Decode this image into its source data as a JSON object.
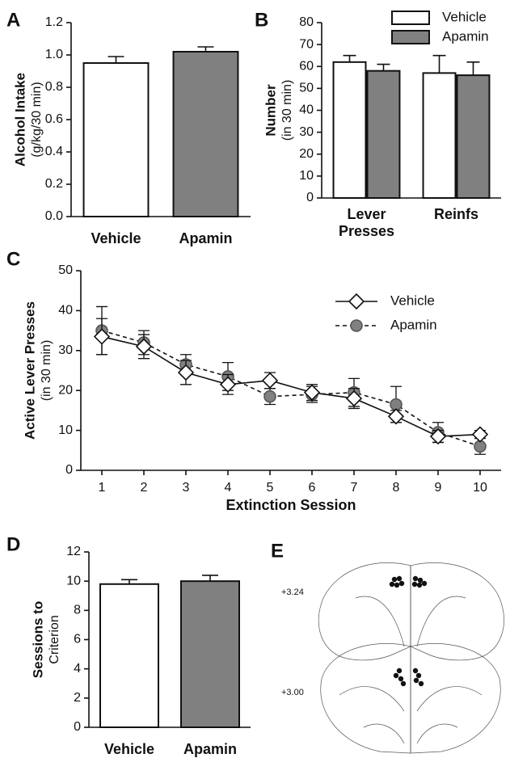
{
  "chart_data": [
    {
      "panel": "A",
      "type": "bar",
      "ylabel": [
        "Alcohol Intake",
        "(g/kg/30 min)"
      ],
      "categories": [
        "Vehicle",
        "Apamin"
      ],
      "values": [
        0.95,
        1.02
      ],
      "errors": [
        0.04,
        0.03
      ],
      "colors": [
        "#ffffff",
        "#808080"
      ],
      "ylim": [
        0,
        1.2
      ],
      "yticks": [
        {
          "value": 0,
          "label": "0.0"
        },
        0.2,
        0.4,
        0.6,
        0.8,
        {
          "value": 1,
          "label": "1.0"
        },
        1.2
      ]
    },
    {
      "panel": "B",
      "type": "grouped-bar",
      "ylabel": [
        "Number",
        "(in 30 min)"
      ],
      "categories": [
        "Lever Presses",
        "Reinfs"
      ],
      "series": [
        {
          "name": "Vehicle",
          "color": "#ffffff",
          "values": [
            62,
            57
          ],
          "errors": [
            3,
            8
          ]
        },
        {
          "name": "Apamin",
          "color": "#808080",
          "values": [
            58,
            56
          ],
          "errors": [
            3,
            6
          ]
        }
      ],
      "ylim": [
        0,
        80
      ],
      "yticks": [
        0,
        10,
        20,
        30,
        40,
        50,
        60,
        70,
        80
      ],
      "legend": "upper right"
    },
    {
      "panel": "C",
      "type": "line",
      "ylabel": [
        "Active Lever Presses",
        "(in 30 min)"
      ],
      "xlabel": "Extinction Session",
      "x": [
        1,
        2,
        3,
        4,
        5,
        6,
        7,
        8,
        9,
        10
      ],
      "series": [
        {
          "name": "Vehicle",
          "color": "#ffffff",
          "marker": "diamond",
          "dashed": false,
          "values": [
            33.5,
            31,
            24.5,
            21.5,
            22.5,
            19.5,
            18,
            13.5,
            8.5,
            9
          ],
          "errors": [
            4.5,
            3,
            3,
            2.5,
            2,
            2,
            2.5,
            1.5,
            1.5,
            1
          ]
        },
        {
          "name": "Apamin",
          "color": "#808080",
          "marker": "circle",
          "dashed": true,
          "values": [
            35,
            32,
            26.5,
            23.5,
            18.5,
            19,
            19.5,
            16.5,
            9.5,
            6
          ],
          "errors": [
            6,
            3,
            2.5,
            3.5,
            2,
            2,
            3.5,
            4.5,
            2.5,
            2
          ]
        }
      ],
      "xlim": [
        0.5,
        10.5
      ],
      "xticks": [
        1,
        2,
        3,
        4,
        5,
        6,
        7,
        8,
        9,
        10
      ],
      "ylim": [
        0,
        50
      ],
      "yticks": [
        0,
        10,
        20,
        30,
        40,
        50
      ],
      "legend": "upper right"
    },
    {
      "panel": "D",
      "type": "bar",
      "ylabel": [
        "Sessions to",
        "Criterion"
      ],
      "categories": [
        "Vehicle",
        "Apamin"
      ],
      "values": [
        9.8,
        10.0
      ],
      "errors": [
        0.3,
        0.4
      ],
      "colors": [
        "#ffffff",
        "#808080"
      ],
      "ylim": [
        0,
        12
      ],
      "yticks": [
        0,
        2,
        4,
        6,
        8,
        10,
        12
      ]
    }
  ],
  "panel_e": {
    "panel": "E",
    "labels": [
      "+3.24",
      "+3.00"
    ]
  }
}
